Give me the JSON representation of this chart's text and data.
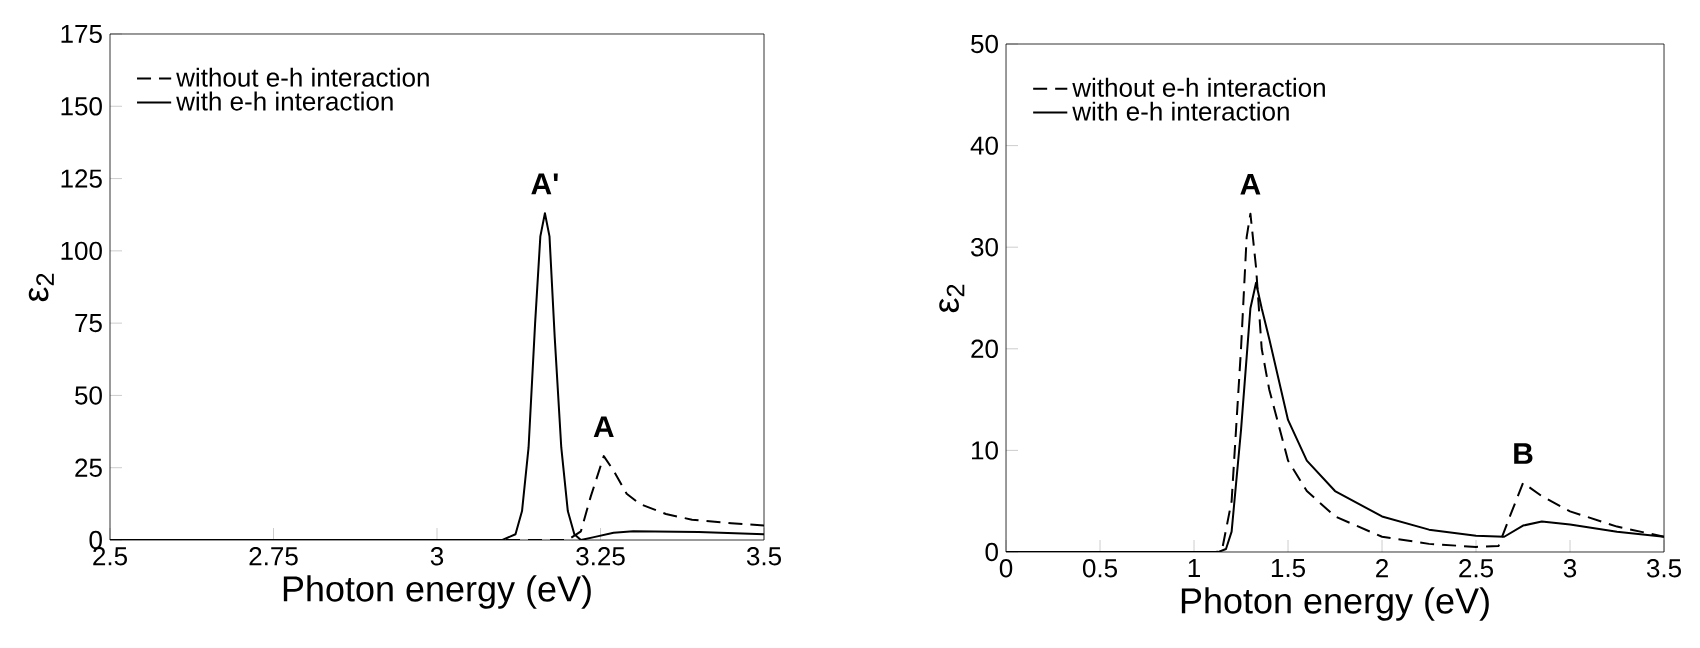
{
  "chart_data": [
    {
      "type": "line",
      "xlabel": "Photon energy (eV)",
      "ylabel": "ε$_{2}$",
      "xlim": [
        2.5,
        3.5
      ],
      "ylim": [
        0,
        175
      ],
      "xticks": [
        2.5,
        2.75,
        3,
        3.25,
        3.5
      ],
      "yticks": [
        0,
        25,
        50,
        75,
        100,
        125,
        150,
        175
      ],
      "legend": "top left",
      "grid": false,
      "marker": "none",
      "series": [
        {
          "name": "without e-h interaction",
          "color": "#000000",
          "line_style": "dashed",
          "x": [
            2.5,
            3.2,
            3.22,
            3.235,
            3.255,
            3.27,
            3.29,
            3.31,
            3.35,
            3.39,
            3.45,
            3.5
          ],
          "values": [
            0,
            0,
            3,
            15,
            29,
            24,
            16,
            12.5,
            9,
            7,
            5.8,
            5
          ]
        },
        {
          "name": "with e-h interaction",
          "color": "#000000",
          "line_style": "solid",
          "x": [
            2.5,
            3.1,
            3.12,
            3.13,
            3.14,
            3.15,
            3.158,
            3.165,
            3.172,
            3.18,
            3.19,
            3.2,
            3.21,
            3.22,
            3.24,
            3.27,
            3.3,
            3.4,
            3.5
          ],
          "values": [
            0,
            0,
            2,
            10,
            32,
            75,
            105,
            113,
            105,
            70,
            32,
            10,
            2,
            0,
            1,
            2.5,
            3,
            2.8,
            2
          ]
        }
      ],
      "annotations": [
        {
          "text": "A'",
          "x": 3.165,
          "y": 113
        },
        {
          "text": "A",
          "x": 3.255,
          "y": 29
        }
      ]
    },
    {
      "type": "line",
      "xlabel": "Photon energy (eV)",
      "ylabel": "ε$_{2}$",
      "xlim": [
        0,
        3.5
      ],
      "ylim": [
        0,
        50
      ],
      "xticks": [
        0,
        0.5,
        1,
        1.5,
        2,
        2.5,
        3,
        3.5
      ],
      "yticks": [
        0,
        10,
        20,
        30,
        40,
        50
      ],
      "legend": "top left",
      "grid": false,
      "marker": "none",
      "series": [
        {
          "name": "without e-h interaction",
          "color": "#000000",
          "line_style": "dashed",
          "x": [
            0,
            1.12,
            1.15,
            1.2,
            1.25,
            1.28,
            1.3,
            1.33,
            1.36,
            1.4,
            1.5,
            1.6,
            1.75,
            2,
            2.25,
            2.5,
            2.62,
            2.68,
            2.75,
            2.85,
            3,
            3.25,
            3.5
          ],
          "values": [
            0,
            0,
            0.3,
            5,
            20,
            31,
            33.3,
            28,
            20,
            16,
            9,
            6,
            3.5,
            1.5,
            0.8,
            0.5,
            0.6,
            3.5,
            6.8,
            5.5,
            4,
            2.5,
            1.5
          ]
        },
        {
          "name": "with e-h interaction",
          "color": "#000000",
          "line_style": "solid",
          "x": [
            0,
            1.13,
            1.17,
            1.2,
            1.25,
            1.3,
            1.33,
            1.36,
            1.4,
            1.5,
            1.6,
            1.75,
            2,
            2.25,
            2.5,
            2.65,
            2.75,
            2.85,
            3,
            3.25,
            3.5
          ],
          "values": [
            0,
            0,
            0.3,
            2,
            12,
            24,
            26.5,
            24,
            21,
            13,
            9,
            6,
            3.5,
            2.2,
            1.6,
            1.5,
            2.6,
            3,
            2.7,
            2,
            1.5
          ]
        }
      ],
      "annotations": [
        {
          "text": "A",
          "x": 1.3,
          "y": 33.3
        },
        {
          "text": "B",
          "x": 2.75,
          "y": 6.8
        }
      ]
    }
  ]
}
